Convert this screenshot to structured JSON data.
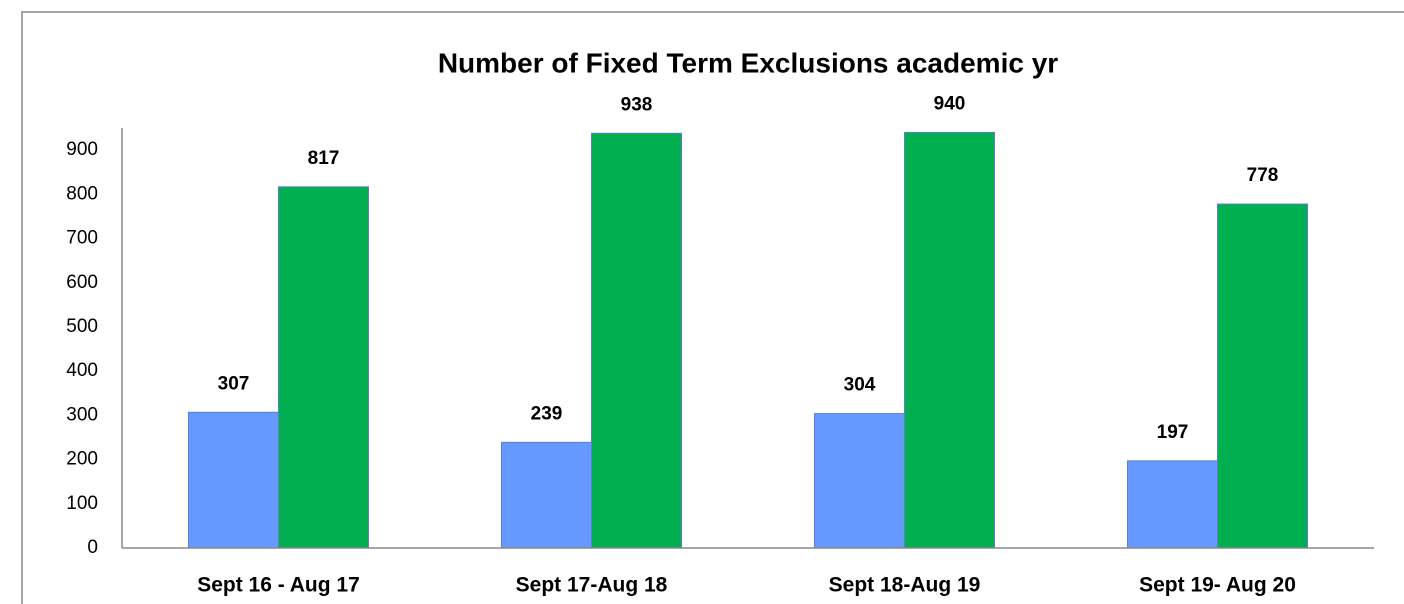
{
  "chart_data": {
    "type": "bar",
    "title": "Number of Fixed Term Exclusions  academic yr",
    "categories": [
      "Sept 16 - Aug 17",
      "Sept 17-Aug 18",
      "Sept 18-Aug 19",
      "Sept 19- Aug 20"
    ],
    "series": [
      {
        "color": "#6699ff",
        "values": [
          307,
          239,
          304,
          197
        ]
      },
      {
        "color": "#00b050",
        "values": [
          817,
          938,
          940,
          778
        ]
      }
    ],
    "ylim": [
      0,
      950
    ],
    "yticks": [
      0,
      100,
      200,
      300,
      400,
      500,
      600,
      700,
      800,
      900
    ],
    "grid": false
  }
}
